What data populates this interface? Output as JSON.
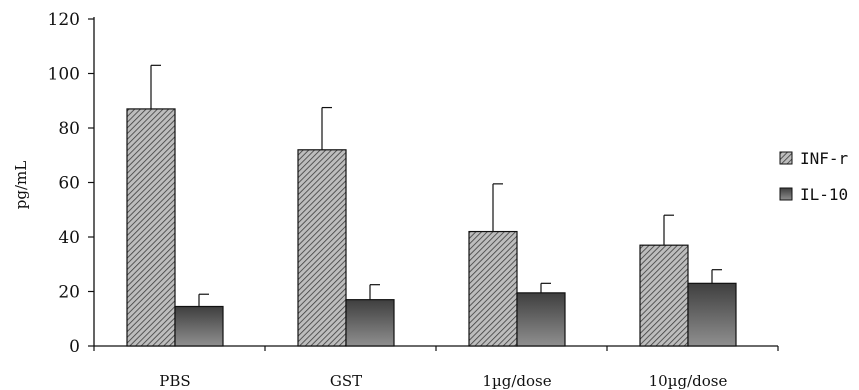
{
  "chart_data": {
    "type": "bar",
    "title": "",
    "xlabel": "",
    "ylabel": "pg/mL",
    "ylim": [
      0,
      120
    ],
    "yticks": [
      0,
      20,
      40,
      60,
      80,
      100,
      120
    ],
    "categories": [
      "PBS",
      "GST",
      "1µg/dose",
      "10µg/dose"
    ],
    "series": [
      {
        "name": "INF-r",
        "values": [
          87,
          72,
          42,
          37
        ],
        "errors": [
          16,
          15.5,
          17.5,
          11
        ],
        "fill": "hatched-gray",
        "color": "#8a8a8a"
      },
      {
        "name": "IL-10",
        "values": [
          14.5,
          17,
          19.5,
          23
        ],
        "errors": [
          4.5,
          5.5,
          3.5,
          5
        ],
        "fill": "gradient-gray",
        "color": "#6e6e6e"
      }
    ],
    "legend_position": "right",
    "grid": false
  }
}
